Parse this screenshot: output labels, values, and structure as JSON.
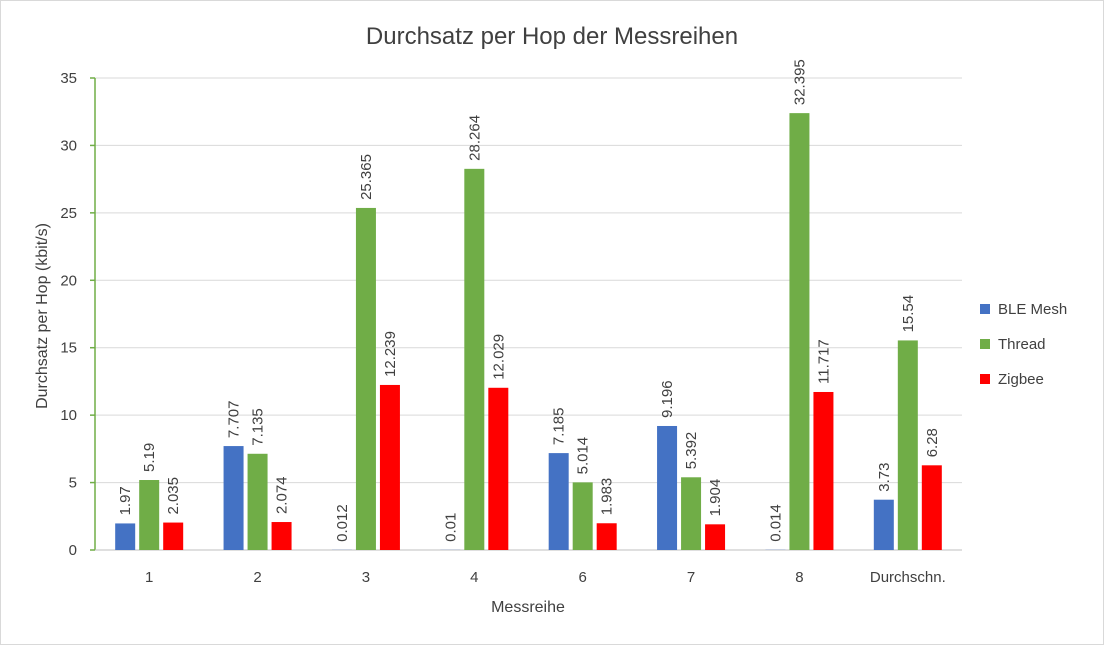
{
  "chart_data": {
    "type": "bar",
    "title": "Durchsatz per Hop der Messreihen",
    "xlabel": "Messreihe",
    "ylabel": "Durchsatz per Hop (kbit/s)",
    "categories": [
      "1",
      "2",
      "3",
      "4",
      "6",
      "7",
      "8",
      "Durchschn."
    ],
    "ylim": [
      0,
      35
    ],
    "yticks": [
      0,
      5,
      10,
      15,
      20,
      25,
      30,
      35
    ],
    "grid": true,
    "legend_position": "right",
    "series": [
      {
        "name": "BLE Mesh",
        "color": "#4472c4",
        "values": [
          1.97,
          7.707,
          0.012,
          0.01,
          7.185,
          9.196,
          0.014,
          3.73
        ],
        "labels": [
          "1.97",
          "7.707",
          "0.012",
          "0.01",
          "7.185",
          "9.196",
          "0.014",
          "3.73"
        ]
      },
      {
        "name": "Thread",
        "color": "#70ad47",
        "values": [
          5.19,
          7.135,
          25.365,
          28.264,
          5.014,
          5.392,
          32.395,
          15.54
        ],
        "labels": [
          "5.19",
          "7.135",
          "25.365",
          "28.264",
          "5.014",
          "5.392",
          "32.395",
          "15.54"
        ]
      },
      {
        "name": "Zigbee",
        "color": "#ff0000",
        "values": [
          2.035,
          2.074,
          12.239,
          12.029,
          1.983,
          1.904,
          11.717,
          6.28
        ],
        "labels": [
          "2.035",
          "2.074",
          "12.239",
          "12.029",
          "1.983",
          "1.904",
          "11.717",
          "6.28"
        ]
      }
    ]
  }
}
